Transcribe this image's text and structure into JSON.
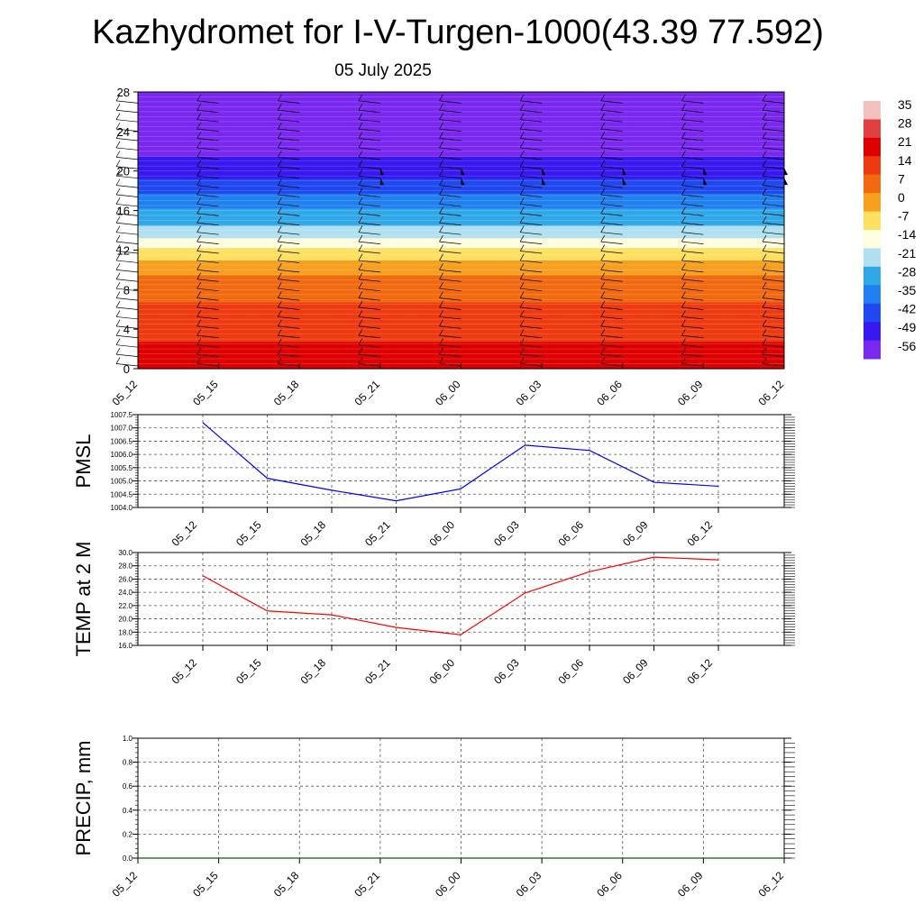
{
  "header": {
    "title": "Kazhydromet for I-V-Turgen-1000(43.39 77.592)",
    "date": "05 July 2025"
  },
  "chart_data": [
    {
      "type": "heatmap",
      "ylim": [
        0,
        28
      ],
      "y_ticks": [
        "0",
        "4",
        "8",
        "12",
        "16",
        "20",
        "24",
        "28"
      ],
      "x_ticks": [
        "05_12",
        "05_15",
        "05_18",
        "05_21",
        "06_00",
        "06_03",
        "06_06",
        "06_09",
        "06_12"
      ],
      "colorbar": {
        "labels": [
          "35",
          "28",
          "21",
          "14",
          "7",
          "0",
          "-7",
          "-14",
          "-21",
          "-28",
          "-35",
          "-42",
          "-49",
          "-56"
        ],
        "colors": [
          "#f4c0c0",
          "#e04040",
          "#dd0000",
          "#ee3a10",
          "#f26a10",
          "#f7a020",
          "#fde060",
          "#fffde0",
          "#b0e0f0",
          "#30a8e8",
          "#2080f0",
          "#2048f0",
          "#3818f0",
          "#7a28f0"
        ]
      },
      "profile": [
        {
          "level": 0,
          "value": 21
        },
        {
          "level": 4,
          "value": 16
        },
        {
          "level": 8,
          "value": 8
        },
        {
          "level": 10,
          "value": 2
        },
        {
          "level": 12.3,
          "value": -10
        },
        {
          "level": 13,
          "value": -16
        },
        {
          "level": 14,
          "value": -22
        },
        {
          "level": 16,
          "value": -30
        },
        {
          "level": 18,
          "value": -40
        },
        {
          "level": 20,
          "value": -48
        },
        {
          "level": 21.5,
          "value": -52
        },
        {
          "level": 22,
          "value": -56
        },
        {
          "level": 28,
          "value": -56
        }
      ],
      "grid": false
    },
    {
      "type": "line",
      "ylabel": "PMSL",
      "ylim": [
        1004.0,
        1007.5
      ],
      "y_ticks": [
        "1004.0",
        "1004.5",
        "1005.0",
        "1005.5",
        "1006.0",
        "1006.5",
        "1007.0",
        "1007.5"
      ],
      "x_ticks": [
        "05_12",
        "05_15",
        "05_18",
        "05_21",
        "06_00",
        "06_03",
        "06_06",
        "06_09",
        "06_12"
      ],
      "series": [
        {
          "color": "#0000ff",
          "values": [
            1007.2,
            1005.1,
            1004.65,
            1004.25,
            1004.7,
            1006.35,
            1006.15,
            1004.95,
            1004.8
          ]
        }
      ],
      "grid": true
    },
    {
      "type": "line",
      "ylabel": "TEMP at 2 M",
      "ylim": [
        16.0,
        30.0
      ],
      "y_ticks": [
        "16.0",
        "18.0",
        "20.0",
        "22.0",
        "24.0",
        "26.0",
        "28.0",
        "30.0"
      ],
      "x_ticks": [
        "05_12",
        "05_15",
        "05_18",
        "05_21",
        "06_00",
        "06_03",
        "06_06",
        "06_09",
        "06_12"
      ],
      "series": [
        {
          "color": "#ff0000",
          "values": [
            26.5,
            21.2,
            20.6,
            18.7,
            17.6,
            23.9,
            27.1,
            29.3,
            28.9
          ]
        }
      ],
      "grid": true
    },
    {
      "type": "line",
      "ylabel": "PRECIP, mm",
      "ylim": [
        0.0,
        1.0
      ],
      "y_ticks": [
        "0.0",
        "0.2",
        "0.4",
        "0.6",
        "0.8",
        "1.0"
      ],
      "x_ticks": [
        "05_12",
        "05_15",
        "05_18",
        "05_21",
        "06_00",
        "06_03",
        "06_06",
        "06_09",
        "06_12"
      ],
      "series": [
        {
          "color": "#006400",
          "values": [
            0,
            0,
            0,
            0,
            0,
            0,
            0,
            0,
            0
          ]
        }
      ],
      "grid": true
    }
  ]
}
